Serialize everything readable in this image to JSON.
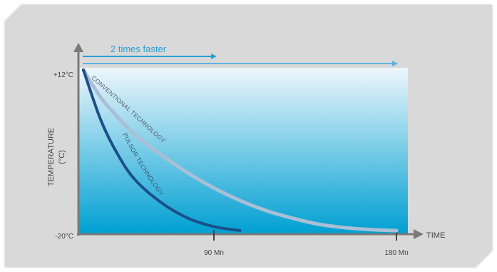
{
  "chart_data": {
    "type": "line",
    "xlabel": "TIME",
    "ylabel": "TEMPERATURE",
    "ylabel_unit": "(°C)",
    "ylim": [
      -20,
      12
    ],
    "xlim": [
      0,
      180
    ],
    "x_tick_labels": [
      "90 Mn",
      "180 Mn"
    ],
    "y_tick_labels": [
      "+12°C",
      "-20°C"
    ],
    "annotation": "2 times faster",
    "series": [
      {
        "name": "CONVENTIONAL TECHNOLOGY",
        "x": [
          0,
          10,
          20,
          30,
          45,
          60,
          75,
          90,
          105,
          120,
          135,
          150,
          165,
          180
        ],
        "y": [
          12,
          6.5,
          2.5,
          -1,
          -5,
          -8.5,
          -11.5,
          -14,
          -16,
          -17.5,
          -18.7,
          -19.4,
          -19.8,
          -20
        ]
      },
      {
        "name": "PULSOR TECHNOLOGY",
        "x": [
          0,
          10,
          20,
          30,
          45,
          60,
          75,
          90
        ],
        "y": [
          12,
          2,
          -5,
          -10,
          -14.5,
          -17.5,
          -19.2,
          -20
        ]
      }
    ],
    "colors": {
      "conventional": "#a9bfd6",
      "pulsor": "#1c4f8a",
      "gradient_top": "#eef6fb",
      "gradient_bottom": "#00a0d2",
      "arrow": "#2a9fd8",
      "axis": "#7a7a7a",
      "panel": "#d9d9d9"
    }
  }
}
